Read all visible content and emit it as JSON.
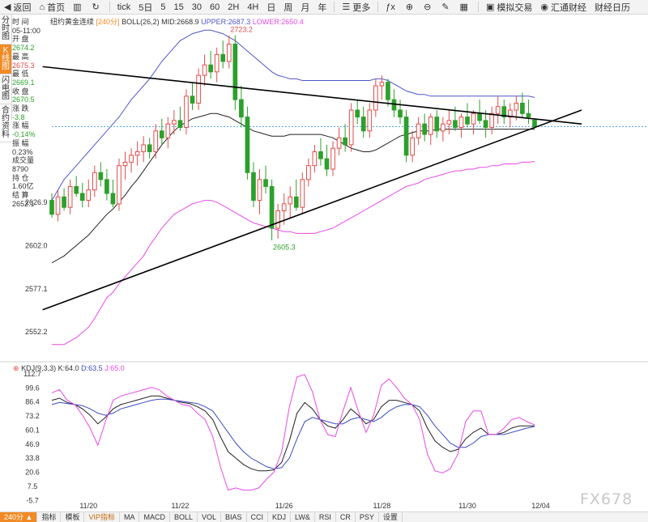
{
  "toolbar": {
    "items": [
      {
        "icon": "back-icon",
        "glyph": "◀",
        "label": "返回"
      },
      {
        "icon": "home-icon",
        "glyph": "⌂",
        "label": "首页"
      },
      {
        "icon": "candlestick-icon",
        "glyph": "▥",
        "label": ""
      },
      {
        "icon": "refresh-icon",
        "glyph": "↻",
        "label": ""
      },
      {
        "icon": "",
        "glyph": "",
        "label": "tick"
      },
      {
        "icon": "",
        "glyph": "",
        "label": "5日"
      },
      {
        "icon": "",
        "glyph": "",
        "label": "5"
      },
      {
        "icon": "",
        "glyph": "",
        "label": "15"
      },
      {
        "icon": "",
        "glyph": "",
        "label": "30"
      },
      {
        "icon": "",
        "glyph": "",
        "label": "60"
      },
      {
        "icon": "",
        "glyph": "",
        "label": "2H"
      },
      {
        "icon": "",
        "glyph": "",
        "label": "4H"
      },
      {
        "icon": "",
        "glyph": "",
        "label": "日"
      },
      {
        "icon": "",
        "glyph": "",
        "label": "周"
      },
      {
        "icon": "",
        "glyph": "",
        "label": "月"
      },
      {
        "icon": "",
        "glyph": "",
        "label": "年"
      },
      {
        "icon": "more-icon",
        "glyph": "☰",
        "label": "更多"
      },
      {
        "icon": "fx-icon",
        "glyph": "ƒx",
        "label": ""
      },
      {
        "icon": "zoom-in-icon",
        "glyph": "⊕",
        "label": ""
      },
      {
        "icon": "zoom-out-icon",
        "glyph": "⊖",
        "label": ""
      },
      {
        "icon": "draw-icon",
        "glyph": "✎",
        "label": ""
      },
      {
        "icon": "layout-icon",
        "glyph": "▦",
        "label": ""
      },
      {
        "icon": "simulate-icon",
        "glyph": "▣",
        "label": "模拟交易"
      },
      {
        "icon": "news-icon",
        "glyph": "◉",
        "label": "汇通财经"
      },
      {
        "icon": "",
        "glyph": "",
        "label": "财经日历"
      }
    ]
  },
  "leftnav": {
    "tabs": [
      {
        "label": "分时图",
        "active": false
      },
      {
        "label": "K线图",
        "active": true
      },
      {
        "label": "闪电图",
        "active": false
      },
      {
        "label": "合约资料",
        "active": false
      }
    ]
  },
  "info_panel": [
    {
      "label": "时 间",
      "value": "05-11:00",
      "color": "#333333"
    },
    {
      "label": "开 盘",
      "value": "2674.2",
      "color": "#2ca02c"
    },
    {
      "label": "最 高",
      "value": "2675.3",
      "color": "#e24c4b"
    },
    {
      "label": "最 低",
      "value": "2669.1",
      "color": "#2ca02c"
    },
    {
      "label": "收 盘",
      "value": "2670.5",
      "color": "#2ca02c"
    },
    {
      "label": "涨 跌",
      "value": "-3.8",
      "color": "#2ca02c"
    },
    {
      "label": "涨 幅",
      "value": "-0.14%",
      "color": "#2ca02c"
    },
    {
      "label": "振 幅",
      "value": "0.23%",
      "color": "#333333"
    },
    {
      "label": "成交量",
      "value": "8790",
      "color": "#333333"
    },
    {
      "label": "持 仓",
      "value": "1.60亿",
      "color": "#333333"
    },
    {
      "label": "结 算",
      "value": "2652.1",
      "color": "#333333"
    }
  ],
  "chart_header": {
    "name": "纽约黄金连续",
    "period": "[240分]",
    "indicator": "BOLL(26,2)",
    "mid": "MID:2668.9",
    "upper": "UPPER:2687.3",
    "lower": "LOWER:2650.4"
  },
  "kdj_header": {
    "name": "KDJ(9,3,3)",
    "k": "K:64.0",
    "d": "D:63.5",
    "j": "J:65.0"
  },
  "bottombar": {
    "items": [
      "240分 ▲",
      "指标",
      "模板",
      "VIP指标",
      "MA",
      "MACD",
      "BOLL",
      "VOL",
      "BIAS",
      "CCI",
      "KDJ",
      "LW&",
      "RSI",
      "CR",
      "PSY",
      "设置"
    ]
  },
  "watermark": "FX678",
  "chart_data": [
    {
      "type": "candlestick",
      "title": "纽约黄金连续 [240分]",
      "y_ticks": [
        2552.2,
        2577.1,
        2602.0,
        2626.9
      ],
      "x_ticks": [
        "11/20",
        "11/22",
        "11/26",
        "11/28",
        "11/30",
        "12/04"
      ],
      "ylim": [
        2536,
        2735
      ],
      "colors": {
        "up": "#e24c4b",
        "down": "#2ca02c",
        "mid": "#222222",
        "upper": "#4f56c9",
        "lower": "#e84ae8",
        "trendline": "#000000",
        "last_price": "#4a9fe0"
      },
      "annotations": [
        {
          "text": "2723.2",
          "x_index": 30,
          "price": 2723.2
        },
        {
          "text": "2605.3",
          "x_index": 37,
          "price": 2605.3
        }
      ],
      "last_price": 2670.5,
      "candles": [
        [
          2628,
          2632,
          2618,
          2620
        ],
        [
          2620,
          2634,
          2616,
          2630
        ],
        [
          2630,
          2635,
          2622,
          2624
        ],
        [
          2624,
          2640,
          2620,
          2636
        ],
        [
          2636,
          2642,
          2630,
          2632
        ],
        [
          2632,
          2638,
          2624,
          2628
        ],
        [
          2628,
          2640,
          2624,
          2634
        ],
        [
          2634,
          2648,
          2630,
          2644
        ],
        [
          2644,
          2650,
          2636,
          2640
        ],
        [
          2640,
          2646,
          2628,
          2632
        ],
        [
          2632,
          2640,
          2624,
          2626
        ],
        [
          2626,
          2652,
          2622,
          2648
        ],
        [
          2648,
          2656,
          2640,
          2650
        ],
        [
          2650,
          2658,
          2644,
          2654
        ],
        [
          2654,
          2662,
          2648,
          2656
        ],
        [
          2656,
          2665,
          2650,
          2660
        ],
        [
          2660,
          2664,
          2652,
          2656
        ],
        [
          2656,
          2672,
          2652,
          2668
        ],
        [
          2668,
          2675,
          2660,
          2664
        ],
        [
          2664,
          2676,
          2658,
          2672
        ],
        [
          2672,
          2680,
          2666,
          2674
        ],
        [
          2674,
          2682,
          2668,
          2670
        ],
        [
          2670,
          2692,
          2666,
          2688
        ],
        [
          2688,
          2696,
          2680,
          2684
        ],
        [
          2684,
          2704,
          2680,
          2700
        ],
        [
          2700,
          2712,
          2694,
          2706
        ],
        [
          2706,
          2714,
          2698,
          2702
        ],
        [
          2702,
          2716,
          2696,
          2712
        ],
        [
          2712,
          2720,
          2704,
          2708
        ],
        [
          2708,
          2723,
          2704,
          2718
        ],
        [
          2718,
          2723,
          2680,
          2686
        ],
        [
          2686,
          2694,
          2670,
          2676
        ],
        [
          2676,
          2682,
          2640,
          2644
        ],
        [
          2644,
          2650,
          2624,
          2628
        ],
        [
          2628,
          2646,
          2620,
          2640
        ],
        [
          2640,
          2648,
          2632,
          2636
        ],
        [
          2636,
          2640,
          2605,
          2612
        ],
        [
          2612,
          2626,
          2606,
          2622
        ],
        [
          2622,
          2632,
          2614,
          2626
        ],
        [
          2626,
          2636,
          2618,
          2630
        ],
        [
          2630,
          2640,
          2622,
          2624
        ],
        [
          2624,
          2644,
          2620,
          2640
        ],
        [
          2640,
          2652,
          2636,
          2648
        ],
        [
          2648,
          2660,
          2644,
          2656
        ],
        [
          2656,
          2664,
          2648,
          2652
        ],
        [
          2652,
          2660,
          2642,
          2646
        ],
        [
          2646,
          2662,
          2642,
          2658
        ],
        [
          2658,
          2670,
          2654,
          2664
        ],
        [
          2664,
          2672,
          2656,
          2660
        ],
        [
          2660,
          2684,
          2656,
          2680
        ],
        [
          2680,
          2686,
          2672,
          2676
        ],
        [
          2676,
          2682,
          2664,
          2668
        ],
        [
          2668,
          2684,
          2664,
          2680
        ],
        [
          2680,
          2698,
          2676,
          2694
        ],
        [
          2694,
          2700,
          2686,
          2696
        ],
        [
          2696,
          2698,
          2682,
          2686
        ],
        [
          2686,
          2692,
          2676,
          2680
        ],
        [
          2680,
          2686,
          2672,
          2676
        ],
        [
          2676,
          2680,
          2650,
          2654
        ],
        [
          2654,
          2668,
          2650,
          2664
        ],
        [
          2664,
          2676,
          2660,
          2672
        ],
        [
          2672,
          2678,
          2662,
          2666
        ],
        [
          2666,
          2678,
          2660,
          2676
        ],
        [
          2676,
          2680,
          2664,
          2668
        ],
        [
          2668,
          2676,
          2662,
          2672
        ],
        [
          2672,
          2680,
          2666,
          2674
        ],
        [
          2674,
          2682,
          2668,
          2670
        ],
        [
          2670,
          2678,
          2664,
          2676
        ],
        [
          2676,
          2684,
          2670,
          2672
        ],
        [
          2672,
          2680,
          2666,
          2678
        ],
        [
          2678,
          2686,
          2672,
          2674
        ],
        [
          2674,
          2680,
          2664,
          2670
        ],
        [
          2670,
          2682,
          2666,
          2678
        ],
        [
          2678,
          2688,
          2672,
          2682
        ],
        [
          2682,
          2686,
          2672,
          2676
        ],
        [
          2676,
          2684,
          2670,
          2680
        ],
        [
          2680,
          2688,
          2674,
          2684
        ],
        [
          2684,
          2690,
          2676,
          2678
        ],
        [
          2678,
          2686,
          2672,
          2676
        ],
        [
          2674.2,
          2675.3,
          2669.1,
          2670.5
        ]
      ],
      "mid": [
        2592,
        2594,
        2596,
        2599,
        2602,
        2605,
        2608,
        2612,
        2616,
        2620,
        2623,
        2627,
        2631,
        2636,
        2640,
        2645,
        2650,
        2655,
        2660,
        2664,
        2668,
        2671,
        2673,
        2675,
        2676,
        2677,
        2678,
        2678,
        2677,
        2676,
        2674,
        2672,
        2670,
        2668,
        2667,
        2666,
        2665,
        2665,
        2665,
        2666,
        2666,
        2666,
        2666,
        2666,
        2666,
        2665,
        2664,
        2662,
        2660,
        2658,
        2657,
        2656,
        2656,
        2657,
        2659,
        2661,
        2663,
        2665,
        2666,
        2667,
        2668,
        2668,
        2668,
        2669,
        2669,
        2669,
        2669,
        2669,
        2669,
        2669,
        2669,
        2669,
        2669,
        2669,
        2669,
        2669,
        2669,
        2669,
        2669,
        2668.9
      ],
      "upper": [
        2628,
        2634,
        2640,
        2644,
        2648,
        2652,
        2656,
        2660,
        2664,
        2668,
        2672,
        2676,
        2681,
        2686,
        2690,
        2694,
        2698,
        2703,
        2708,
        2712,
        2716,
        2720,
        2722,
        2724,
        2725,
        2726,
        2726,
        2725,
        2724,
        2722,
        2720,
        2717,
        2714,
        2711,
        2708,
        2705,
        2702,
        2700,
        2699,
        2698,
        2698,
        2697,
        2697,
        2697,
        2697,
        2697,
        2697,
        2697,
        2697,
        2697,
        2697,
        2697,
        2697,
        2698,
        2698,
        2697,
        2695,
        2693,
        2691,
        2690,
        2689,
        2689,
        2688,
        2688,
        2688,
        2688,
        2688,
        2688,
        2688,
        2688,
        2688,
        2688,
        2688,
        2688,
        2688,
        2688,
        2688,
        2688,
        2688,
        2687.3
      ],
      "lower": [
        2545,
        2545,
        2545,
        2547,
        2549,
        2552,
        2555,
        2560,
        2566,
        2572,
        2575,
        2580,
        2584,
        2588,
        2592,
        2596,
        2602,
        2607,
        2612,
        2616,
        2620,
        2622,
        2624,
        2626,
        2627,
        2628,
        2628,
        2627,
        2625,
        2623,
        2621,
        2619,
        2617,
        2615,
        2614,
        2613,
        2612,
        2611,
        2610,
        2610,
        2609,
        2609,
        2609,
        2609,
        2610,
        2611,
        2612,
        2614,
        2616,
        2618,
        2620,
        2622,
        2624,
        2626,
        2628,
        2630,
        2632,
        2634,
        2636,
        2637,
        2638,
        2640,
        2641,
        2642,
        2643,
        2644,
        2645,
        2645,
        2646,
        2646,
        2647,
        2647,
        2648,
        2648,
        2649,
        2649,
        2649,
        2650,
        2650,
        2650.4
      ],
      "trendlines": [
        {
          "from": {
            "x_index": -1.5,
            "price": 2705
          },
          "to": {
            "x_index": 86.7,
            "price": 2672
          }
        },
        {
          "from": {
            "x_index": -1.5,
            "price": 2565
          },
          "to": {
            "x_index": 86.7,
            "price": 2680
          }
        }
      ]
    },
    {
      "type": "line",
      "title": "KDJ(9,3,3)",
      "y_ticks": [
        112.7,
        99.6,
        86.4,
        73.2,
        60.1,
        46.9,
        33.8,
        20.6,
        7.5,
        -5.7
      ],
      "ylim": [
        -16,
        118
      ],
      "series": [
        {
          "name": "K",
          "color": "#222222",
          "values": [
            88,
            90,
            86,
            84,
            80,
            74,
            66,
            72,
            80,
            84,
            86,
            88,
            90,
            92,
            92,
            90,
            88,
            86,
            85,
            82,
            78,
            70,
            54,
            40,
            34,
            28,
            24,
            22,
            22,
            23,
            30,
            50,
            76,
            86,
            80,
            70,
            64,
            62,
            70,
            80,
            74,
            66,
            70,
            82,
            88,
            88,
            86,
            84,
            78,
            62,
            50,
            44,
            40,
            42,
            52,
            58,
            62,
            56,
            56,
            58,
            62,
            64,
            64,
            64
          ]
        },
        {
          "name": "D",
          "color": "#3b4cc0",
          "values": [
            84,
            86,
            85,
            84,
            83,
            80,
            76,
            74,
            76,
            80,
            82,
            84,
            86,
            88,
            89,
            89,
            88,
            87,
            86,
            85,
            82,
            78,
            68,
            58,
            48,
            40,
            34,
            30,
            26,
            24,
            25,
            34,
            52,
            68,
            72,
            70,
            68,
            66,
            66,
            70,
            72,
            70,
            68,
            72,
            78,
            82,
            84,
            84,
            82,
            74,
            64,
            56,
            48,
            44,
            44,
            48,
            54,
            56,
            56,
            56,
            58,
            60,
            62,
            63.5
          ]
        },
        {
          "name": "J",
          "color": "#e84ae8",
          "values": [
            95,
            98,
            88,
            84,
            74,
            62,
            46,
            68,
            88,
            92,
            94,
            96,
            98,
            100,
            98,
            92,
            88,
            84,
            83,
            76,
            70,
            54,
            26,
            4,
            6,
            4,
            4,
            6,
            14,
            21,
            40,
            82,
            110,
            112,
            96,
            70,
            56,
            54,
            78,
            100,
            78,
            58,
            74,
            102,
            108,
            100,
            90,
            84,
            70,
            38,
            22,
            20,
            24,
            38,
            68,
            78,
            78,
            56,
            56,
            62,
            70,
            72,
            68,
            65
          ]
        }
      ]
    }
  ]
}
